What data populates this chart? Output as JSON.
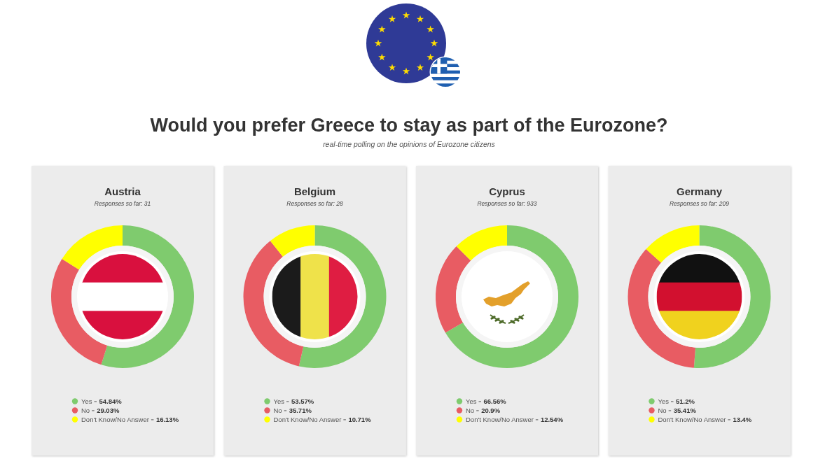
{
  "chart_data": [
    {
      "type": "other",
      "title": "Would you prefer Greece to stay as part of the Eurozone?",
      "subtitle": "real-time polling on the opinions of Eurozone citizens"
    },
    {
      "type": "donut",
      "title": "Austria",
      "subtitle": "Responses so far: 31",
      "categories": [
        "Yes",
        "No",
        "Don't Know/No Answer"
      ],
      "values": [
        54.84,
        29.03,
        16.13
      ],
      "value_labels": [
        "54.84%",
        "29.03%",
        "16.13%"
      ],
      "colors": [
        "#7fcb6e",
        "#e85c63",
        "#ffff00"
      ],
      "legend": "bottom"
    },
    {
      "type": "donut",
      "title": "Belgium",
      "subtitle": "Responses so far: 28",
      "categories": [
        "Yes",
        "No",
        "Don't Know/No Answer"
      ],
      "values": [
        53.57,
        35.71,
        10.71
      ],
      "value_labels": [
        "53.57%",
        "35.71%",
        "10.71%"
      ],
      "colors": [
        "#7fcb6e",
        "#e85c63",
        "#ffff00"
      ],
      "legend": "bottom"
    },
    {
      "type": "donut",
      "title": "Cyprus",
      "subtitle": "Responses so far: 933",
      "categories": [
        "Yes",
        "No",
        "Don't Know/No Answer"
      ],
      "values": [
        66.56,
        20.9,
        12.54
      ],
      "value_labels": [
        "66.56%",
        "20.9%",
        "12.54%"
      ],
      "colors": [
        "#7fcb6e",
        "#e85c63",
        "#ffff00"
      ],
      "legend": "bottom"
    },
    {
      "type": "donut",
      "title": "Germany",
      "subtitle": "Responses so far: 209",
      "categories": [
        "Yes",
        "No",
        "Don't Know/No Answer"
      ],
      "values": [
        51.2,
        35.41,
        13.4
      ],
      "value_labels": [
        "51.2%",
        "35.41%",
        "13.4%"
      ],
      "colors": [
        "#7fcb6e",
        "#e85c63",
        "#ffff00"
      ],
      "legend": "bottom"
    }
  ]
}
